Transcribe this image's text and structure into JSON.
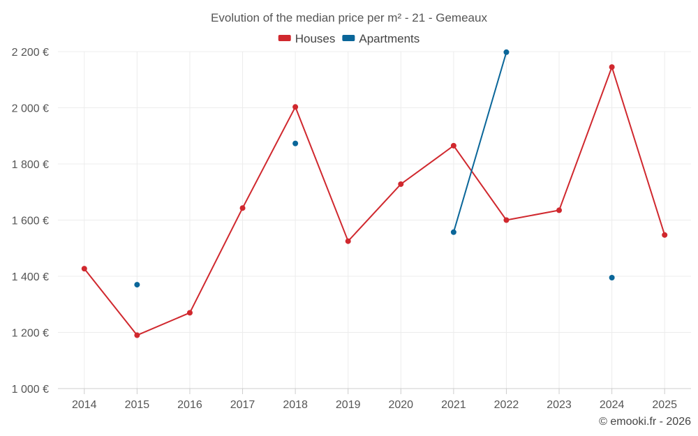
{
  "chart_data": {
    "type": "line",
    "title": "Evolution of the median price per m² - 21 - Gemeaux",
    "categories": [
      "2014",
      "2015",
      "2016",
      "2017",
      "2018",
      "2019",
      "2020",
      "2021",
      "2022",
      "2023",
      "2024",
      "2025"
    ],
    "ylim": [
      1000,
      2200
    ],
    "yticks": [
      1000,
      1200,
      1400,
      1600,
      1800,
      2000,
      2200
    ],
    "ytick_labels": [
      "1 000 €",
      "1 200 €",
      "1 400 €",
      "1 600 €",
      "1 800 €",
      "2 000 €",
      "2 200 €"
    ],
    "grid": true,
    "legend_position": "top-center",
    "series": [
      {
        "name": "Houses",
        "color": "#d0282e",
        "values": [
          1427,
          1190,
          1270,
          1643,
          2003,
          1525,
          1728,
          1865,
          1600,
          1635,
          2145,
          1547
        ]
      },
      {
        "name": "Apartments",
        "color": "#0a6699",
        "values": [
          null,
          1370,
          null,
          null,
          1873,
          null,
          null,
          1557,
          2198,
          null,
          1395,
          null
        ]
      }
    ]
  },
  "credit": "© emooki.fr - 2026"
}
